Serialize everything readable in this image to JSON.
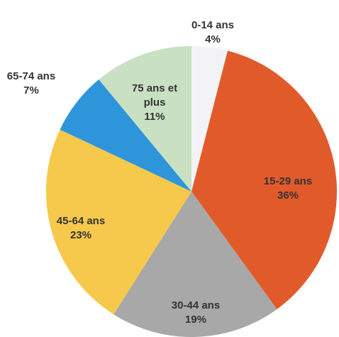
{
  "chart_data": {
    "type": "pie",
    "categories": [
      "0-14 ans",
      "15-29 ans",
      "30-44 ans",
      "45-64 ans",
      "65-74 ans",
      "75 ans et plus"
    ],
    "values": [
      4,
      36,
      19,
      23,
      7,
      11
    ],
    "value_labels": [
      "4%",
      "36%",
      "19%",
      "23%",
      "7%",
      "11%"
    ],
    "colors": [
      "#f3f3f6",
      "#e15b2a",
      "#a8a8a8",
      "#f6c94c",
      "#2f95db",
      "#c9e0c3"
    ]
  }
}
